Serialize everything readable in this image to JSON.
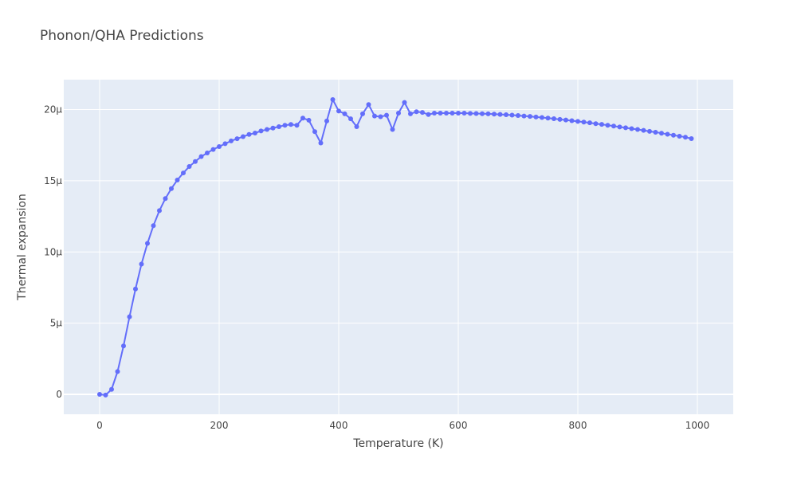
{
  "chart_data": {
    "type": "line",
    "mode": "lines+markers",
    "title": "Phonon/QHA Predictions",
    "xlabel": "Temperature (K)",
    "ylabel": "Thermal expansion",
    "xlim": [
      -60,
      1060
    ],
    "ylim": [
      -1.4e-06,
      2.21e-05
    ],
    "xticks": [
      0,
      200,
      400,
      600,
      800,
      1000
    ],
    "xtick_labels": [
      "0",
      "200",
      "400",
      "600",
      "800",
      "1000"
    ],
    "yticks": [
      0,
      5e-06,
      1e-05,
      1.5e-05,
      2e-05
    ],
    "ytick_labels": [
      "0",
      "5μ",
      "10μ",
      "15μ",
      "20μ"
    ],
    "grid": true,
    "colors": {
      "plot_bg": "#e5ecf6",
      "grid": "#ffffff",
      "line": "#636efa",
      "text": "#444444"
    },
    "x": [
      0,
      10,
      20,
      30,
      40,
      50,
      60,
      70,
      80,
      90,
      100,
      110,
      120,
      130,
      140,
      150,
      160,
      170,
      180,
      190,
      200,
      210,
      220,
      230,
      240,
      250,
      260,
      270,
      280,
      290,
      300,
      310,
      320,
      330,
      340,
      350,
      360,
      370,
      380,
      390,
      400,
      410,
      420,
      430,
      440,
      450,
      460,
      470,
      480,
      490,
      500,
      510,
      520,
      530,
      540,
      550,
      560,
      570,
      580,
      590,
      600,
      610,
      620,
      630,
      640,
      650,
      660,
      670,
      680,
      690,
      700,
      710,
      720,
      730,
      740,
      750,
      760,
      770,
      780,
      790,
      800,
      810,
      820,
      830,
      840,
      850,
      860,
      870,
      880,
      890,
      900,
      910,
      920,
      930,
      940,
      950,
      960,
      970,
      980,
      990
    ],
    "y": [
      0,
      -5e-08,
      3.5e-07,
      1.6e-06,
      3.4e-06,
      5.45e-06,
      7.4e-06,
      9.15e-06,
      1.06e-05,
      1.185e-05,
      1.29e-05,
      1.375e-05,
      1.445e-05,
      1.505e-05,
      1.555e-05,
      1.6e-05,
      1.635e-05,
      1.67e-05,
      1.695e-05,
      1.72e-05,
      1.74e-05,
      1.76e-05,
      1.78e-05,
      1.795e-05,
      1.81e-05,
      1.825e-05,
      1.835e-05,
      1.85e-05,
      1.86e-05,
      1.87e-05,
      1.88e-05,
      1.89e-05,
      1.895e-05,
      1.89e-05,
      1.94e-05,
      1.925e-05,
      1.845e-05,
      1.765e-05,
      1.92e-05,
      2.07e-05,
      1.99e-05,
      1.97e-05,
      1.935e-05,
      1.88e-05,
      1.97e-05,
      2.035e-05,
      1.955e-05,
      1.95e-05,
      1.96e-05,
      1.86e-05,
      1.975e-05,
      2.05e-05,
      1.97e-05,
      1.985e-05,
      1.98e-05,
      1.965e-05,
      1.975e-05,
      1.975e-05,
      1.975e-05,
      1.975e-05,
      1.975e-05,
      1.975e-05,
      1.973e-05,
      1.972e-05,
      1.971e-05,
      1.97e-05,
      1.968e-05,
      1.966e-05,
      1.964e-05,
      1.961e-05,
      1.958e-05,
      1.955e-05,
      1.952e-05,
      1.948e-05,
      1.944e-05,
      1.94e-05,
      1.936e-05,
      1.931e-05,
      1.927e-05,
      1.922e-05,
      1.917e-05,
      1.912e-05,
      1.907e-05,
      1.901e-05,
      1.896e-05,
      1.89e-05,
      1.884e-05,
      1.878e-05,
      1.872e-05,
      1.866e-05,
      1.86e-05,
      1.854e-05,
      1.847e-05,
      1.841e-05,
      1.834e-05,
      1.827e-05,
      1.82e-05,
      1.813e-05,
      1.806e-05,
      1.796e-05
    ]
  }
}
